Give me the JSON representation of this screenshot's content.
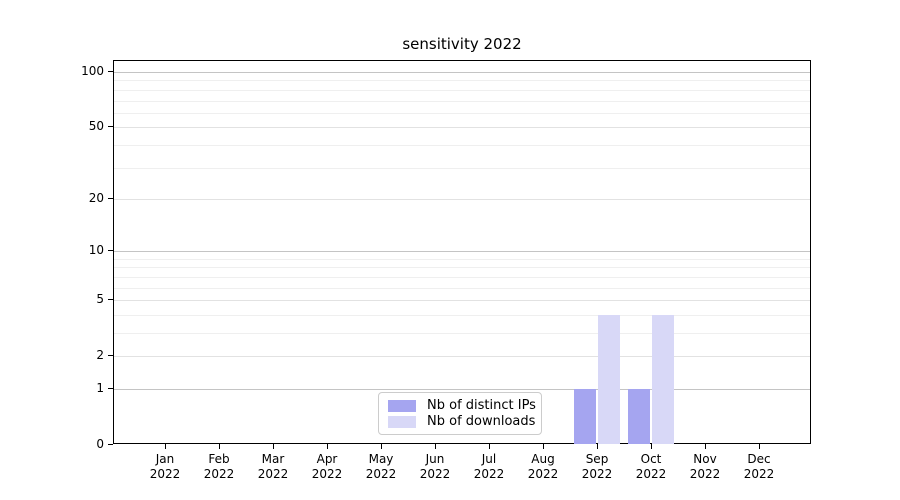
{
  "title": "sensitivity 2022",
  "chart_data": {
    "type": "bar",
    "title": "sensitivity 2022",
    "categories": [
      "Jan 2022",
      "Feb 2022",
      "Mar 2022",
      "Apr 2022",
      "May 2022",
      "Jun 2022",
      "Jul 2022",
      "Aug 2022",
      "Sep 2022",
      "Oct 2022",
      "Nov 2022",
      "Dec 2022"
    ],
    "series": [
      {
        "name": "Nb of distinct IPs",
        "color": "#a5a5f0",
        "values": [
          0,
          0,
          0,
          0,
          0,
          0,
          0,
          0,
          1,
          1,
          0,
          0
        ]
      },
      {
        "name": "Nb of downloads",
        "color": "#d8d8f7",
        "values": [
          0,
          0,
          0,
          0,
          0,
          0,
          0,
          0,
          4,
          4,
          0,
          0
        ]
      }
    ],
    "xlabel": "",
    "ylabel": "",
    "yscale": "log1p",
    "ylim": [
      0,
      115
    ],
    "y_ticks": [
      0,
      1,
      2,
      5,
      10,
      20,
      50,
      100
    ],
    "y_tick_labels": [
      "0",
      "1",
      "2",
      "5",
      "10",
      "20",
      "50",
      "100"
    ],
    "gridlines": {
      "strong": [
        1,
        10,
        100
      ],
      "medium": [
        2,
        5,
        20,
        50
      ],
      "faint": [
        3,
        4,
        6,
        7,
        8,
        9,
        30,
        40,
        60,
        70,
        80,
        90
      ]
    },
    "grid": "on",
    "legend_position": "lower center",
    "bar_group": "two bars per month, distinct IPs left of tick, downloads right of tick"
  },
  "colors": {
    "background": "#ffffff",
    "axis": "#000000",
    "grid_strong": "#c4c4c4",
    "grid_medium": "#e2e2e2",
    "grid_faint": "#efefef",
    "legend_border": "#cccccc",
    "series_distinct_ips": "#a5a5f0",
    "series_downloads": "#d8d8f7"
  }
}
